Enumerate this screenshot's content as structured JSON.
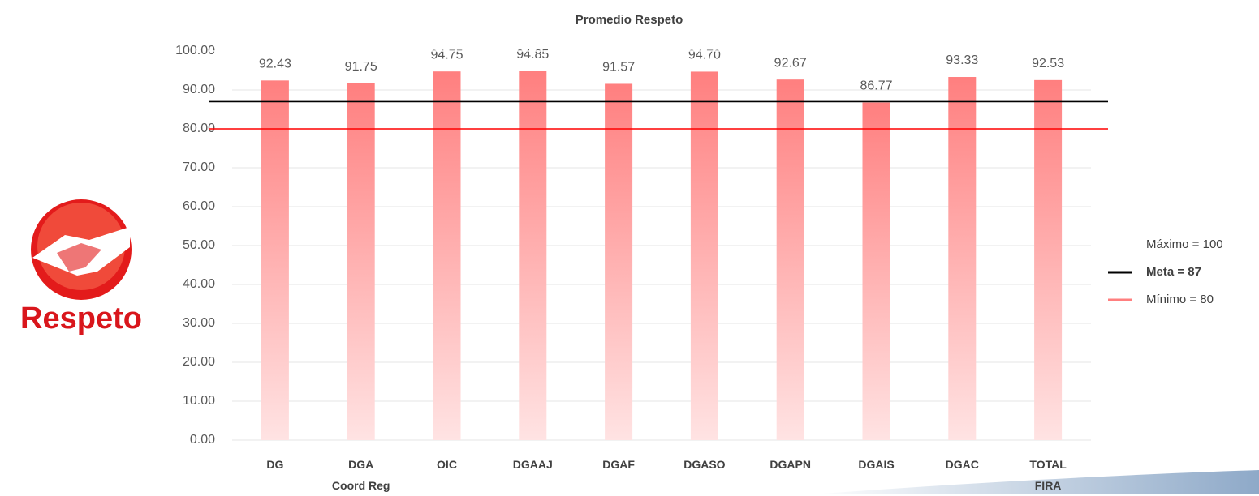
{
  "chart_data": {
    "type": "bar",
    "title": "Promedio Respeto",
    "categories": [
      "DG",
      "DGA Coord Reg",
      "OIC",
      "DGAAJ",
      "DGAF",
      "DGASO",
      "DGAPN",
      "DGAIS",
      "DGAC",
      "TOTAL FIRA"
    ],
    "values": [
      92.43,
      91.75,
      94.75,
      94.85,
      91.57,
      94.7,
      92.67,
      86.77,
      93.33,
      92.53
    ],
    "value_labels": [
      "92.43",
      "91.75",
      "94.75",
      "94.85",
      "91.57",
      "94.70",
      "92.67",
      "86.77",
      "93.33",
      "92.53"
    ],
    "color": "#ff7f7f",
    "ylim": [
      0,
      100
    ],
    "yticks": [
      {
        "value": 0,
        "label": "0.00"
      },
      {
        "value": 10,
        "label": "10.00"
      },
      {
        "value": 20,
        "label": "20.00"
      },
      {
        "value": 30,
        "label": "30.00"
      },
      {
        "value": 40,
        "label": "40.00"
      },
      {
        "value": 50,
        "label": "50.00"
      },
      {
        "value": 60,
        "label": "60.00"
      },
      {
        "value": 70,
        "label": "70.00"
      },
      {
        "value": 80,
        "label": "80.00"
      },
      {
        "value": 90,
        "label": "90.00"
      },
      {
        "value": 100,
        "label": "100.00"
      }
    ],
    "grid": true,
    "reference_lines": [
      {
        "name": "Máximo = 100",
        "value": 100,
        "color": "#ffffff"
      },
      {
        "name": "Meta = 87",
        "value": 87,
        "color": "#000000"
      },
      {
        "name": "Mínimo = 80",
        "value": 80,
        "color": "#ff0000"
      }
    ],
    "legend": "right"
  },
  "logo_text": "Respeto"
}
